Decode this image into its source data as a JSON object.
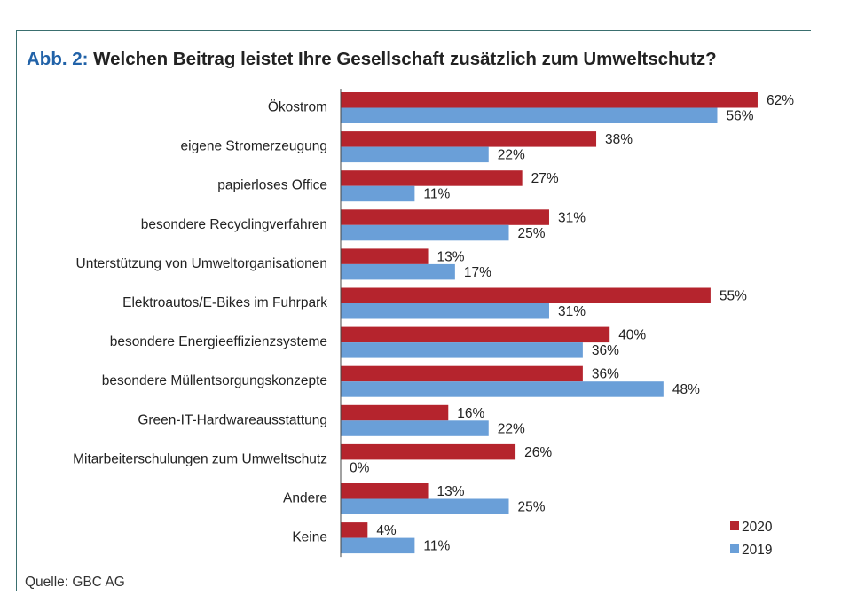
{
  "title_prefix": "Abb. 2:",
  "title_text": "Welchen Beitrag leistet Ihre Gesellschaft zusätzlich zum Umweltschutz?",
  "source": "Quelle: GBC AG",
  "colors": {
    "series_2020": "#b5242d",
    "series_2019": "#6a9fd8",
    "title_prefix": "#2162a8",
    "frame": "#3a6f6f"
  },
  "chart_data": {
    "type": "bar",
    "orientation": "horizontal",
    "title": "Welchen Beitrag leistet Ihre Gesellschaft zusätzlich zum Umweltschutz?",
    "categories": [
      "Ökostrom",
      "eigene Stromerzeugung",
      "papierloses Office",
      "besondere Recyclingverfahren",
      "Unterstützung von Umweltorganisationen",
      "Elektroautos/E-Bikes im Fuhrpark",
      "besondere Energieeffizienzsysteme",
      "besondere Müllentsorgungskonzepte",
      "Green-IT-Hardwareausstattung",
      "Mitarbeiterschulungen zum Umweltschutz",
      "Andere",
      "Keine"
    ],
    "series": [
      {
        "name": "2020",
        "values": [
          62,
          38,
          27,
          31,
          13,
          55,
          40,
          36,
          16,
          26,
          13,
          4
        ]
      },
      {
        "name": "2019",
        "values": [
          56,
          22,
          11,
          25,
          17,
          31,
          36,
          48,
          22,
          0,
          25,
          11
        ]
      }
    ],
    "value_suffix": "%",
    "xlim": [
      0,
      100
    ],
    "legend_position": "bottom-right",
    "grid": false
  }
}
